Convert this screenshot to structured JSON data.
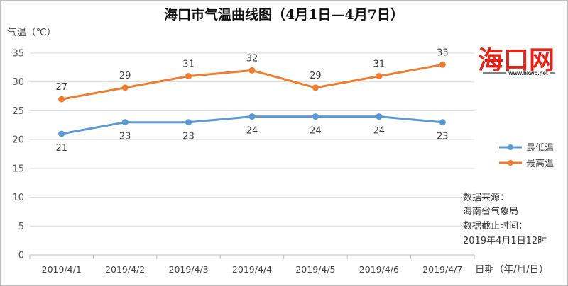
{
  "chart_data": {
    "type": "line",
    "title": "海口市气温曲线图（4月1日—4月7日）",
    "ylabel": "气温（℃）",
    "xlabel": "日期（年/月/日）",
    "categories": [
      "2019/4/1",
      "2019/4/2",
      "2019/4/3",
      "2019/4/4",
      "2019/4/5",
      "2019/4/6",
      "2019/4/7"
    ],
    "series": [
      {
        "name": "最低温",
        "color": "#5B9BD5",
        "values": [
          21,
          23,
          23,
          24,
          24,
          24,
          23
        ]
      },
      {
        "name": "最高温",
        "color": "#ED7D31",
        "values": [
          27,
          29,
          31,
          32,
          29,
          31,
          33
        ]
      }
    ],
    "ylim": [
      0,
      35
    ],
    "yticks": [
      0,
      5,
      10,
      15,
      20,
      25,
      30,
      35
    ],
    "grid": true,
    "legend": "right",
    "markers": true,
    "data_labels": true
  },
  "source_note": {
    "source_label": "数据来源：",
    "source": "海南省气象局",
    "cutoff_label": "数据截止时间：",
    "cutoff": "2019年4月1日12时"
  },
  "logo": {
    "text": "海口网",
    "site": "www.hkwb.net",
    "color": "#E2231A"
  }
}
